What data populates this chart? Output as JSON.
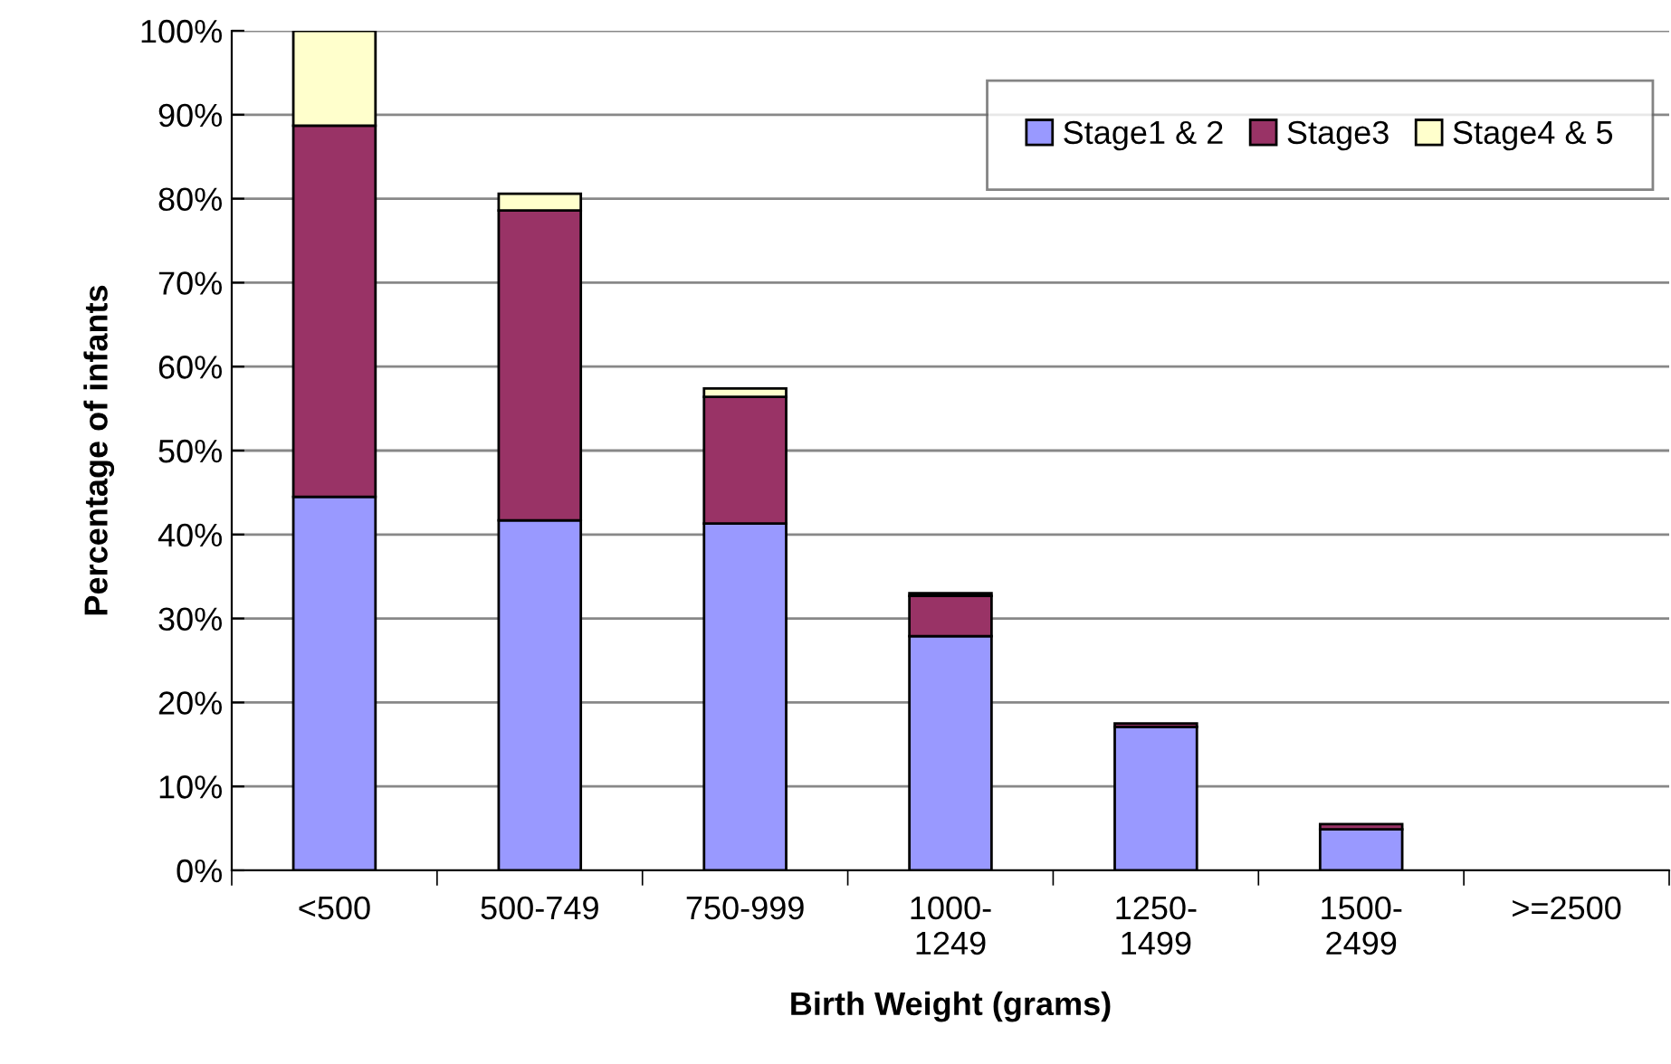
{
  "chart_data": {
    "type": "bar",
    "stacked": true,
    "xlabel": "Birth Weight (grams)",
    "ylabel": "Percentage of infants",
    "categories": [
      "<500",
      "500-749",
      "750-999",
      "1000-\n1249",
      "1250-\n1499",
      "1500-\n2499",
      ">=2500"
    ],
    "series": [
      {
        "name": "Stage1 & 2",
        "color": "#9999ff",
        "values": [
          44.5,
          41.7,
          41.3,
          27.9,
          17.1,
          4.9,
          0
        ]
      },
      {
        "name": "Stage3",
        "color": "#993366",
        "values": [
          44.2,
          36.9,
          15.1,
          4.8,
          0.4,
          0.6,
          0
        ]
      },
      {
        "name": "Stage4 & 5",
        "color": "#ffffcc",
        "values": [
          11.3,
          2.0,
          1.0,
          0.3,
          0,
          0,
          0
        ]
      }
    ],
    "ylim": [
      0,
      100
    ],
    "yticks": [
      {
        "value": 0,
        "label": "0%"
      },
      {
        "value": 10,
        "label": "10%"
      },
      {
        "value": 20,
        "label": "20%"
      },
      {
        "value": 30,
        "label": "30%"
      },
      {
        "value": 40,
        "label": "40%"
      },
      {
        "value": 50,
        "label": "50%"
      },
      {
        "value": 60,
        "label": "60%"
      },
      {
        "value": 70,
        "label": "70%"
      },
      {
        "value": 80,
        "label": "80%"
      },
      {
        "value": 90,
        "label": "90%"
      },
      {
        "value": 100,
        "label": "100%"
      }
    ],
    "grid": "y",
    "legend": "top right"
  }
}
